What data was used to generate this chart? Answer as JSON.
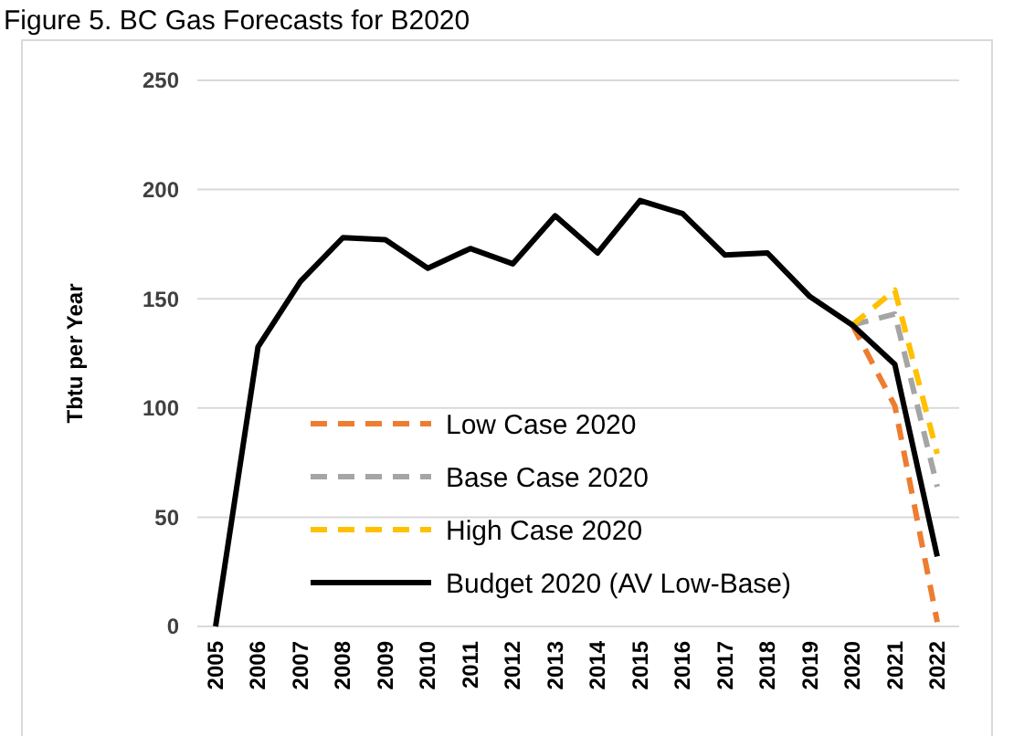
{
  "chart_data": {
    "type": "line",
    "title": "Figure 5. BC Gas Forecasts for B2020",
    "ylabel": "Tbtu per Year",
    "categories": [
      "2005",
      "2006",
      "2007",
      "2008",
      "2009",
      "2010",
      "2011",
      "2012",
      "2013",
      "2014",
      "2015",
      "2016",
      "2017",
      "2018",
      "2019",
      "2020",
      "2021",
      "2022"
    ],
    "series": [
      {
        "name": "Low Case 2020",
        "color": "#ed7d31",
        "line_style": "dashed",
        "values": [
          null,
          null,
          null,
          null,
          null,
          null,
          null,
          null,
          null,
          null,
          null,
          null,
          null,
          null,
          null,
          138,
          101,
          2
        ]
      },
      {
        "name": "Base Case 2020",
        "color": "#a5a5a5",
        "line_style": "dashed",
        "values": [
          null,
          null,
          null,
          null,
          null,
          null,
          null,
          null,
          null,
          null,
          null,
          null,
          null,
          null,
          null,
          138,
          143,
          64
        ]
      },
      {
        "name": "High Case 2020",
        "color": "#ffc000",
        "line_style": "dashed",
        "values": [
          null,
          null,
          null,
          null,
          null,
          null,
          null,
          null,
          null,
          null,
          null,
          null,
          null,
          null,
          null,
          138,
          154,
          79
        ]
      },
      {
        "name": "Budget 2020 (AV Low-Base)",
        "color": "#000000",
        "line_style": "solid",
        "values": [
          0,
          128,
          158,
          178,
          177,
          164,
          173,
          166,
          188,
          171,
          195,
          189,
          170,
          171,
          151,
          138,
          120,
          32
        ]
      }
    ],
    "ylim": [
      0,
      250
    ],
    "yticks": [
      0,
      50,
      100,
      150,
      200,
      250
    ],
    "grid": "y",
    "legend": "bottom left"
  }
}
